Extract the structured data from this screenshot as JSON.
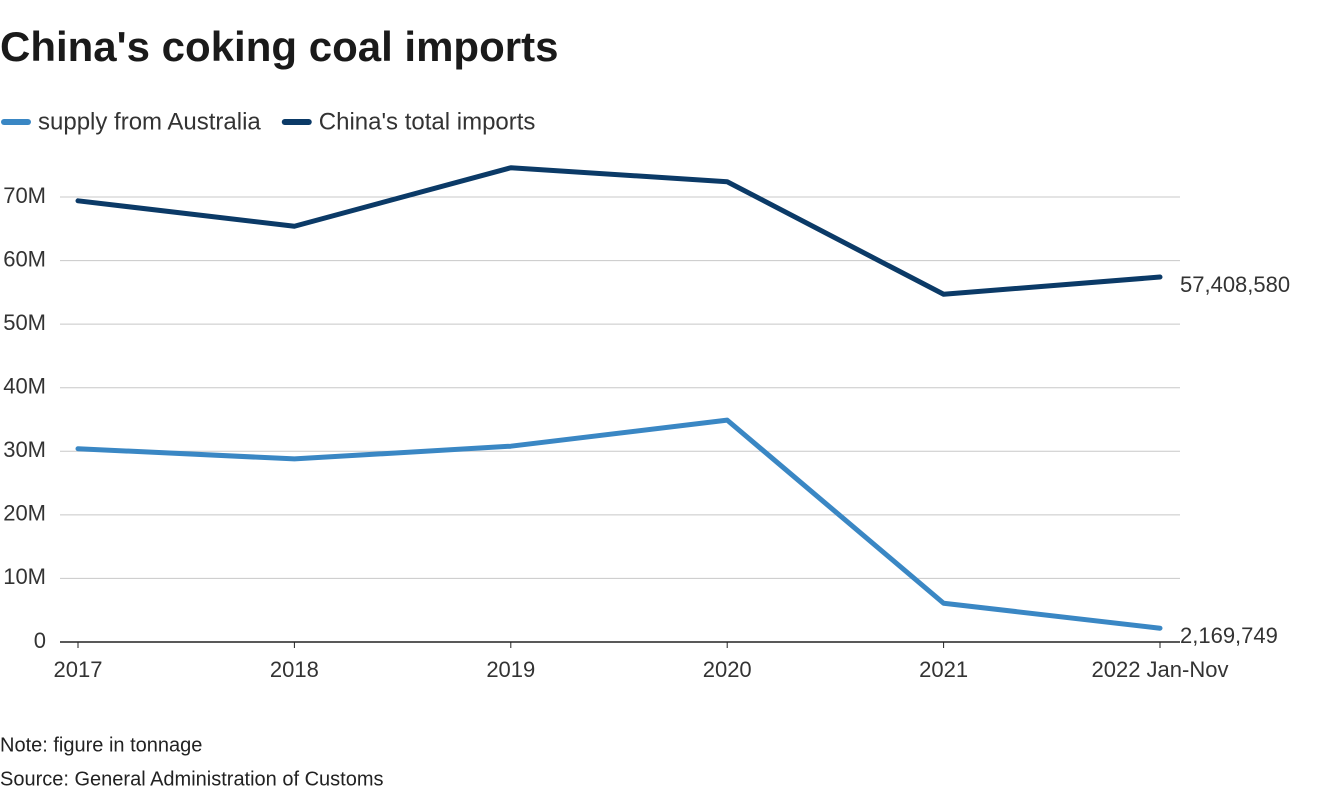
{
  "chart_data": {
    "type": "line",
    "title": "China's coking coal imports",
    "categories": [
      "2017",
      "2018",
      "2019",
      "2020",
      "2021",
      "2022 Jan-Nov"
    ],
    "series": [
      {
        "name": "supply from Australia",
        "color": "#3a87c4",
        "values": [
          30400000,
          28800000,
          30800000,
          34900000,
          6100000,
          2169749
        ],
        "value_labels": [
          null,
          null,
          null,
          null,
          null,
          "2,169,749"
        ]
      },
      {
        "name": "China's total imports",
        "color": "#0b3a67",
        "values": [
          69400000,
          65400000,
          74600000,
          72400000,
          54700000,
          57408580
        ],
        "value_labels": [
          null,
          null,
          null,
          null,
          null,
          "57,408,580"
        ]
      }
    ],
    "ylim": [
      0,
      70000000
    ],
    "yticks": [
      0,
      {
        "value": 10000000,
        "label": "10M"
      },
      {
        "value": 20000000,
        "label": "20M"
      },
      {
        "value": 30000000,
        "label": "30M"
      },
      {
        "value": 40000000,
        "label": "40M"
      },
      {
        "value": 50000000,
        "label": "50M"
      },
      {
        "value": 60000000,
        "label": "60M"
      },
      {
        "value": 70000000,
        "label": "70M"
      }
    ],
    "grid": true,
    "legend": "top-left",
    "notes": [
      "Note: figure in tonnage",
      "Source: General Administration of Customs"
    ]
  }
}
